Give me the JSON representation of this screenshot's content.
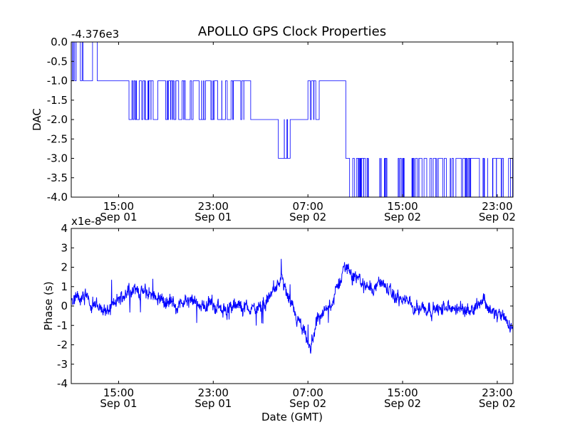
{
  "chart_data": [
    {
      "type": "line",
      "title": "APOLLO GPS Clock Properties",
      "ylabel": "DAC",
      "offset_label": "-4.376e3",
      "ylim": [
        -4.0,
        0.0
      ],
      "yticks": [
        "0.0",
        "-0.5",
        "-1.0",
        "-1.5",
        "-2.0",
        "-2.5",
        "-3.0",
        "-3.5",
        "-4.0"
      ],
      "xlim": [
        "2012-09-01 11:00",
        "2012-09-03 00:20"
      ],
      "xticks": [
        {
          "time": "15:00",
          "date": "Sep 01"
        },
        {
          "time": "23:00",
          "date": "Sep 01"
        },
        {
          "time": "07:00",
          "date": "Sep 02"
        },
        {
          "time": "15:00",
          "date": "Sep 02"
        },
        {
          "time": "23:00",
          "date": "Sep 02"
        }
      ],
      "segments": [
        {
          "hours": [
            11.0,
            11.3
          ],
          "level": 0.0,
          "toggle": -1.0,
          "switches": 5
        },
        {
          "hours": [
            11.3,
            12.0
          ],
          "level": -1.0,
          "toggle": 0.0,
          "switches": 3
        },
        {
          "hours": [
            12.0,
            12.8
          ],
          "level": -1.0,
          "toggle": 0.0,
          "switches": 0
        },
        {
          "hours": [
            12.8,
            13.2
          ],
          "level": 0.0,
          "toggle": -1.0,
          "switches": 0
        },
        {
          "hours": [
            13.2,
            15.3
          ],
          "level": -1.0,
          "toggle": -1.0,
          "switches": 0
        },
        {
          "hours": [
            15.3,
            20.5
          ],
          "level": -1.0,
          "toggle": -2.0,
          "switches": 34
        },
        {
          "hours": [
            20.5,
            26.5
          ],
          "level": -2.0,
          "toggle": -1.0,
          "switches": 32
        },
        {
          "hours": [
            26.5,
            28.5
          ],
          "level": -2.0,
          "toggle": -2.0,
          "switches": 0
        },
        {
          "hours": [
            28.5,
            29.0
          ],
          "level": -3.0,
          "toggle": -3.0,
          "switches": 0
        },
        {
          "hours": [
            29.0,
            29.5
          ],
          "level": -2.0,
          "toggle": -3.0,
          "switches": 3
        },
        {
          "hours": [
            29.5,
            31.0
          ],
          "level": -2.0,
          "toggle": -2.0,
          "switches": 0
        },
        {
          "hours": [
            31.0,
            32.0
          ],
          "level": -1.0,
          "toggle": -2.0,
          "switches": 6
        },
        {
          "hours": [
            32.0,
            34.2
          ],
          "level": -1.0,
          "toggle": -1.0,
          "switches": 0
        },
        {
          "hours": [
            34.2,
            34.5
          ],
          "level": -3.0,
          "toggle": -3.0,
          "switches": 0
        },
        {
          "hours": [
            34.5,
            36.0
          ],
          "level": -3.0,
          "toggle": -4.0,
          "switches": 16
        },
        {
          "hours": [
            36.0,
            48.33
          ],
          "level": -3.0,
          "toggle": -4.0,
          "switches": 80
        }
      ]
    },
    {
      "type": "line",
      "xlabel": "Date (GMT)",
      "ylabel": "Phase (s)",
      "offset_label": "x1e-8",
      "ylim": [
        -4,
        4
      ],
      "yticks": [
        "4",
        "3",
        "2",
        "1",
        "0",
        "-1",
        "-2",
        "-3",
        "-4"
      ],
      "xlim": [
        "2012-09-01 11:00",
        "2012-09-03 00:20"
      ],
      "xticks": [
        {
          "time": "15:00",
          "date": "Sep 01"
        },
        {
          "time": "23:00",
          "date": "Sep 01"
        },
        {
          "time": "07:00",
          "date": "Sep 02"
        },
        {
          "time": "15:00",
          "date": "Sep 02"
        },
        {
          "time": "23:00",
          "date": "Sep 02"
        }
      ],
      "trend": [
        {
          "hour": 11.0,
          "value": 0.2
        },
        {
          "hour": 12.0,
          "value": 0.5
        },
        {
          "hour": 13.0,
          "value": 0.1
        },
        {
          "hour": 14.0,
          "value": -0.3
        },
        {
          "hour": 15.0,
          "value": 0.3
        },
        {
          "hour": 16.0,
          "value": 0.9
        },
        {
          "hour": 17.0,
          "value": 0.7
        },
        {
          "hour": 18.0,
          "value": 0.6
        },
        {
          "hour": 19.0,
          "value": 0.2
        },
        {
          "hour": 20.0,
          "value": 0.1
        },
        {
          "hour": 21.0,
          "value": 0.2
        },
        {
          "hour": 22.0,
          "value": 0.0
        },
        {
          "hour": 23.0,
          "value": 0.1
        },
        {
          "hour": 24.0,
          "value": -0.2
        },
        {
          "hour": 25.0,
          "value": 0.0
        },
        {
          "hour": 26.0,
          "value": -0.1
        },
        {
          "hour": 27.0,
          "value": -0.2
        },
        {
          "hour": 28.0,
          "value": 0.7
        },
        {
          "hour": 28.8,
          "value": 1.4
        },
        {
          "hour": 29.4,
          "value": 0.2
        },
        {
          "hour": 30.0,
          "value": -0.6
        },
        {
          "hour": 30.8,
          "value": -1.6
        },
        {
          "hour": 31.2,
          "value": -2.3
        },
        {
          "hour": 31.8,
          "value": -0.6
        },
        {
          "hour": 32.5,
          "value": -0.3
        },
        {
          "hour": 33.2,
          "value": 0.4
        },
        {
          "hour": 33.8,
          "value": 1.5
        },
        {
          "hour": 34.2,
          "value": 2.1
        },
        {
          "hour": 34.8,
          "value": 1.6
        },
        {
          "hour": 35.5,
          "value": 1.2
        },
        {
          "hour": 36.5,
          "value": 0.9
        },
        {
          "hour": 37.2,
          "value": 1.3
        },
        {
          "hour": 38.0,
          "value": 0.6
        },
        {
          "hour": 39.0,
          "value": 0.3
        },
        {
          "hour": 40.0,
          "value": 0.0
        },
        {
          "hour": 41.0,
          "value": -0.1
        },
        {
          "hour": 42.0,
          "value": -0.2
        },
        {
          "hour": 43.0,
          "value": -0.1
        },
        {
          "hour": 44.0,
          "value": -0.2
        },
        {
          "hour": 45.0,
          "value": -0.1
        },
        {
          "hour": 45.8,
          "value": 0.4
        },
        {
          "hour": 46.5,
          "value": -0.3
        },
        {
          "hour": 47.5,
          "value": -0.6
        },
        {
          "hour": 48.33,
          "value": -1.2
        }
      ],
      "noise_amplitude": 0.35
    }
  ]
}
